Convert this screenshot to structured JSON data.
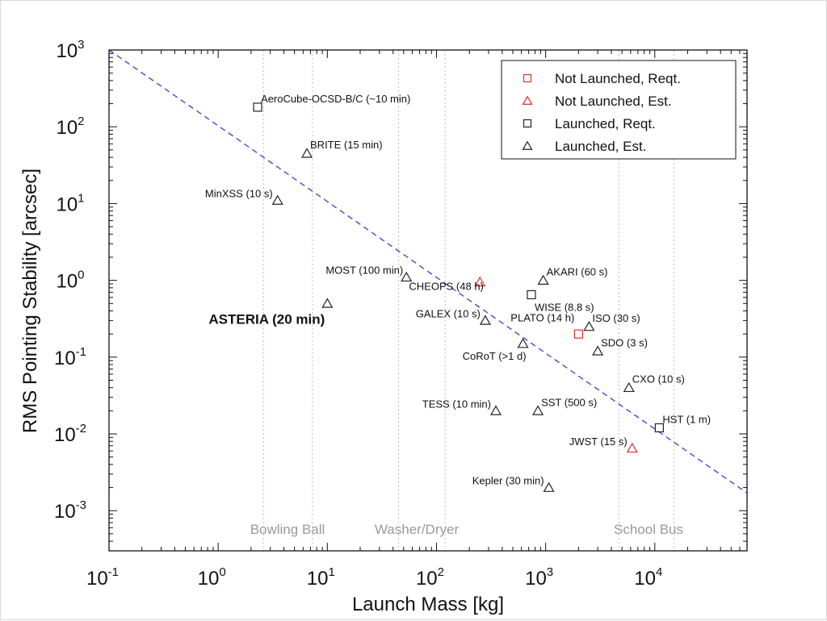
{
  "chart_data": {
    "type": "scatter",
    "xlabel": "Launch Mass [kg]",
    "ylabel": "RMS Pointing Stability [arcsec]",
    "x_scale": "log",
    "y_scale": "log",
    "xlim": [
      0.1,
      70000
    ],
    "ylim": [
      0.0003,
      1000
    ],
    "x_ticks": [
      {
        "value": 0.1,
        "base": "10",
        "exp": "-1"
      },
      {
        "value": 1,
        "base": "10",
        "exp": "0"
      },
      {
        "value": 10,
        "base": "10",
        "exp": "1"
      },
      {
        "value": 100,
        "base": "10",
        "exp": "2"
      },
      {
        "value": 1000,
        "base": "10",
        "exp": "3"
      },
      {
        "value": 10000,
        "base": "10",
        "exp": "4"
      }
    ],
    "y_ticks": [
      {
        "value": 0.001,
        "base": "10",
        "exp": "-3"
      },
      {
        "value": 0.01,
        "base": "10",
        "exp": "-2"
      },
      {
        "value": 0.1,
        "base": "10",
        "exp": "-1"
      },
      {
        "value": 1,
        "base": "10",
        "exp": "0"
      },
      {
        "value": 10,
        "base": "10",
        "exp": "1"
      },
      {
        "value": 100,
        "base": "10",
        "exp": "2"
      },
      {
        "value": 1000,
        "base": "10",
        "exp": "3"
      }
    ],
    "grid": false,
    "legend_position": "top-right",
    "series": [
      {
        "name": "Not Launched, Reqt.",
        "marker": "square",
        "color": "#e0302a",
        "points": [
          {
            "x": 2000,
            "y": 0.2,
            "label": ""
          }
        ]
      },
      {
        "name": "Not Launched, Est.",
        "marker": "triangle",
        "color": "#e0302a",
        "points": [
          {
            "x": 250,
            "y": 0.95,
            "label": ""
          },
          {
            "x": 6200,
            "y": 0.0065,
            "label": "JWST (15 s)"
          }
        ]
      },
      {
        "name": "Launched, Reqt.",
        "marker": "square",
        "color": "#222222",
        "points": [
          {
            "x": 2.3,
            "y": 180,
            "label": "AeroCube-OCSD-B/C (~10 min)"
          },
          {
            "x": 740,
            "y": 0.65,
            "label": "WISE (8.8 s)"
          },
          {
            "x": 11000,
            "y": 0.012,
            "label": "HST (1 m)"
          }
        ]
      },
      {
        "name": "Launched, Est.",
        "marker": "triangle",
        "color": "#222222",
        "points": [
          {
            "x": 6.5,
            "y": 45,
            "label": "BRITE (15 min)"
          },
          {
            "x": 3.5,
            "y": 11,
            "label": "MinXSS (10 s)"
          },
          {
            "x": 53,
            "y": 1.1,
            "label": "MOST (100 min)"
          },
          {
            "x": 10,
            "y": 0.5,
            "label": ""
          },
          {
            "x": 950,
            "y": 1.0,
            "label": "AKARI (60 s)"
          },
          {
            "x": 280,
            "y": 0.3,
            "label": "GALEX (10 s)"
          },
          {
            "x": 2500,
            "y": 0.25,
            "label": "ISO (30 s)"
          },
          {
            "x": 620,
            "y": 0.15,
            "label": "CoRoT (>1 d)"
          },
          {
            "x": 3000,
            "y": 0.12,
            "label": "SDO (3 s)"
          },
          {
            "x": 5800,
            "y": 0.04,
            "label": "CXO (10 s)"
          },
          {
            "x": 350,
            "y": 0.02,
            "label": "TESS (10 min)"
          },
          {
            "x": 850,
            "y": 0.02,
            "label": "SST (500 s)"
          },
          {
            "x": 1070,
            "y": 0.002,
            "label": "Kepler (30 min)"
          }
        ]
      }
    ],
    "annotations": [
      {
        "text": "CHEOPS (48 h)",
        "x": 280,
        "y": 0.83
      },
      {
        "text": "PLATO (14 h)",
        "x": 1900,
        "y": 0.39
      },
      {
        "text": "ASTERIA (20 min)",
        "x": 10,
        "y": 0.5
      }
    ],
    "trend_line": {
      "style": "dashed",
      "color": "#3a4fd0",
      "x1": 0.1,
      "y1": 1000,
      "x2": 70000,
      "y2": 0.0017
    },
    "reference_lines": [
      {
        "label": "Bowling Ball",
        "x": 2.6
      },
      {
        "label": "Bowling Ball",
        "x": 7.3
      },
      {
        "label": "Washer/Dryer",
        "x": 45
      },
      {
        "label": "Washer/Dryer",
        "x": 120
      },
      {
        "label": "School Bus",
        "x": 4700
      },
      {
        "label": "School Bus",
        "x": 15000
      }
    ],
    "reference_texts": [
      "Bowling Ball",
      "Washer/Dryer",
      "School Bus"
    ]
  }
}
